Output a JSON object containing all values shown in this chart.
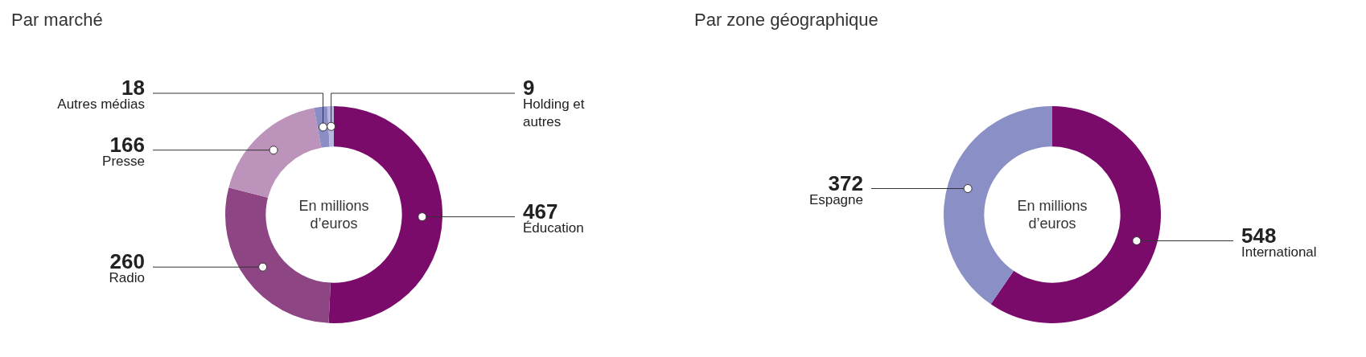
{
  "chart_data": [
    {
      "type": "donut",
      "title": "Par marché",
      "categories": [
        "Éducation",
        "Radio",
        "Presse",
        "Autres médias",
        "Holding et autres"
      ],
      "values": [
        467,
        260,
        166,
        18,
        9
      ],
      "colors": [
        "#7b0b6a",
        "#8e4584",
        "#bb93bb",
        "#8a8ec4",
        "#bab5de"
      ],
      "data_labels": true,
      "annotations": [
        "En millions d’euros"
      ]
    },
    {
      "type": "donut",
      "title": "Par zone géographique",
      "categories": [
        "International",
        "Espagne"
      ],
      "values": [
        548,
        372
      ],
      "colors": [
        "#7b0b6a",
        "#8a8fc6"
      ],
      "data_labels": true,
      "annotations": [
        "En millions d’euros"
      ]
    }
  ]
}
